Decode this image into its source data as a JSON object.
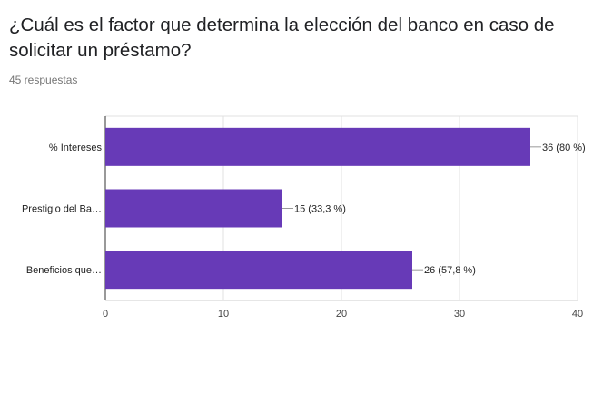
{
  "question": {
    "title": "¿Cuál es el factor que determina la elección del banco en caso de solicitar un préstamo?",
    "responses": "45 respuestas"
  },
  "chart_data": {
    "type": "bar",
    "orientation": "horizontal",
    "categories": [
      "% Intereses",
      "Prestigio del Ba…",
      "Beneficios que…"
    ],
    "values": [
      36,
      15,
      26
    ],
    "data_labels": [
      "36 (80 %)",
      "15 (33,3 %)",
      "26 (57,8 %)"
    ],
    "xlim": [
      0,
      40
    ],
    "x_ticks": [
      0,
      10,
      20,
      30,
      40
    ],
    "grid": true,
    "bar_color": "#673ab7"
  }
}
